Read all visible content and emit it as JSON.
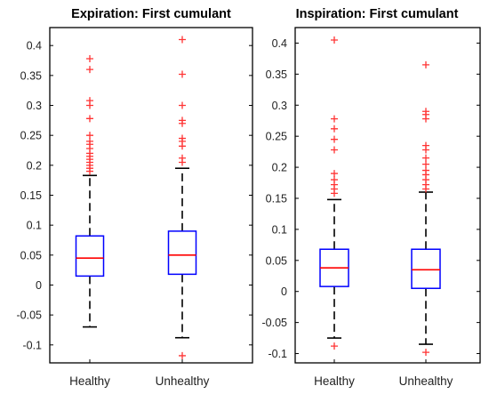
{
  "colors": {
    "box": "#0000ff",
    "median": "#ff0000",
    "whisker": "#000000",
    "outlier": "#ff3333",
    "axes": "#000000"
  },
  "chart_data": [
    {
      "type": "box",
      "title": "Expiration:  First cumulant",
      "categories": [
        "Healthy",
        "Unhealthy"
      ],
      "ylim": [
        -0.13,
        0.43
      ],
      "yticks": [
        -0.1,
        -0.05,
        0,
        0.05,
        0.1,
        0.15,
        0.2,
        0.25,
        0.3,
        0.35,
        0.4
      ],
      "ytick_labels": [
        "-0.1",
        "-0.05",
        "0",
        "0.05",
        "0.1",
        "0.15",
        "0.2",
        "0.25",
        "0.3",
        "0.35",
        "0.4"
      ],
      "boxes": [
        {
          "name": "Healthy",
          "whisker_low": -0.07,
          "q1": 0.015,
          "median": 0.045,
          "q3": 0.082,
          "whisker_high": 0.183,
          "outliers": [
            0.378,
            0.36,
            0.308,
            0.3,
            0.278,
            0.25,
            0.24,
            0.235,
            0.228,
            0.22,
            0.215,
            0.21,
            0.205,
            0.2,
            0.195,
            0.19
          ]
        },
        {
          "name": "Unhealthy",
          "whisker_low": -0.088,
          "q1": 0.018,
          "median": 0.05,
          "q3": 0.09,
          "whisker_high": 0.195,
          "outliers": [
            0.41,
            0.352,
            0.3,
            0.275,
            0.27,
            0.245,
            0.24,
            0.232,
            0.212,
            0.205,
            -0.118
          ]
        }
      ]
    },
    {
      "type": "box",
      "title": "Inspiration: First cumulant",
      "categories": [
        "Healthy",
        "Unhealthy"
      ],
      "ylim": [
        -0.115,
        0.425
      ],
      "yticks": [
        -0.1,
        -0.05,
        0,
        0.05,
        0.1,
        0.15,
        0.2,
        0.25,
        0.3,
        0.35,
        0.4
      ],
      "ytick_labels": [
        "-0.1",
        "-0.05",
        "0",
        "0.05",
        "0.1",
        "0.15",
        "0.2",
        "0.25",
        "0.3",
        "0.35",
        "0.4"
      ],
      "boxes": [
        {
          "name": "Healthy",
          "whisker_low": -0.075,
          "q1": 0.008,
          "median": 0.038,
          "q3": 0.068,
          "whisker_high": 0.148,
          "outliers": [
            0.405,
            0.278,
            0.262,
            0.245,
            0.228,
            0.19,
            0.18,
            0.172,
            0.165,
            0.158,
            -0.088
          ]
        },
        {
          "name": "Unhealthy",
          "whisker_low": -0.085,
          "q1": 0.005,
          "median": 0.035,
          "q3": 0.068,
          "whisker_high": 0.16,
          "outliers": [
            0.365,
            0.29,
            0.285,
            0.278,
            0.235,
            0.228,
            0.215,
            0.205,
            0.195,
            0.188,
            0.18,
            0.172,
            0.165,
            -0.098
          ]
        }
      ]
    }
  ]
}
